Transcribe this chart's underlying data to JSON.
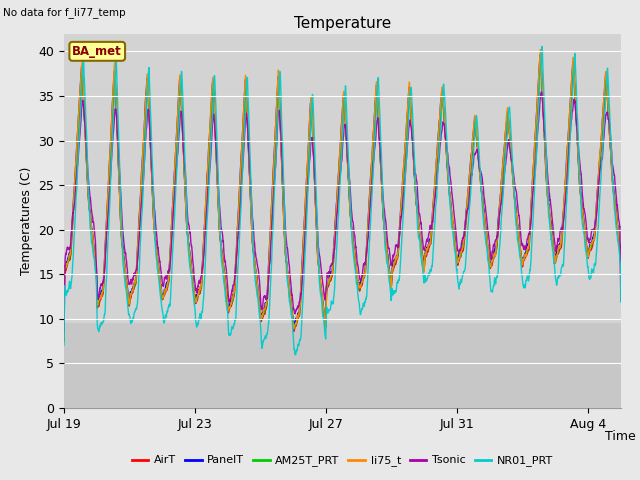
{
  "title": "Temperature",
  "ylabel": "Temperatures (C)",
  "xlabel": "Time",
  "note": "No data for f_li77_temp",
  "location_label": "BA_met",
  "ylim": [
    0,
    42
  ],
  "yticks": [
    0,
    5,
    10,
    15,
    20,
    25,
    30,
    35,
    40
  ],
  "grid_color": "#ffffff",
  "bg_color": "#d3d3d3",
  "bg_color_lower": "#c8c8c8",
  "series": [
    {
      "name": "AirT",
      "color": "#ff0000"
    },
    {
      "name": "PanelT",
      "color": "#0000ff"
    },
    {
      "name": "AM25T_PRT",
      "color": "#00cc00"
    },
    {
      "name": "li75_t",
      "color": "#ff8800"
    },
    {
      "name": "Tsonic",
      "color": "#aa00aa"
    },
    {
      "name": "NR01_PRT",
      "color": "#00cccc"
    }
  ],
  "x_tick_labels": [
    "Jul 19",
    "Jul 23",
    "Jul 27",
    "Jul 31",
    "Aug 4"
  ],
  "x_tick_positions": [
    0,
    4,
    8,
    12,
    16
  ],
  "num_days": 17,
  "points_per_day": 144,
  "title_fontsize": 11,
  "tick_fontsize": 9,
  "label_fontsize": 9,
  "legend_fontsize": 8
}
